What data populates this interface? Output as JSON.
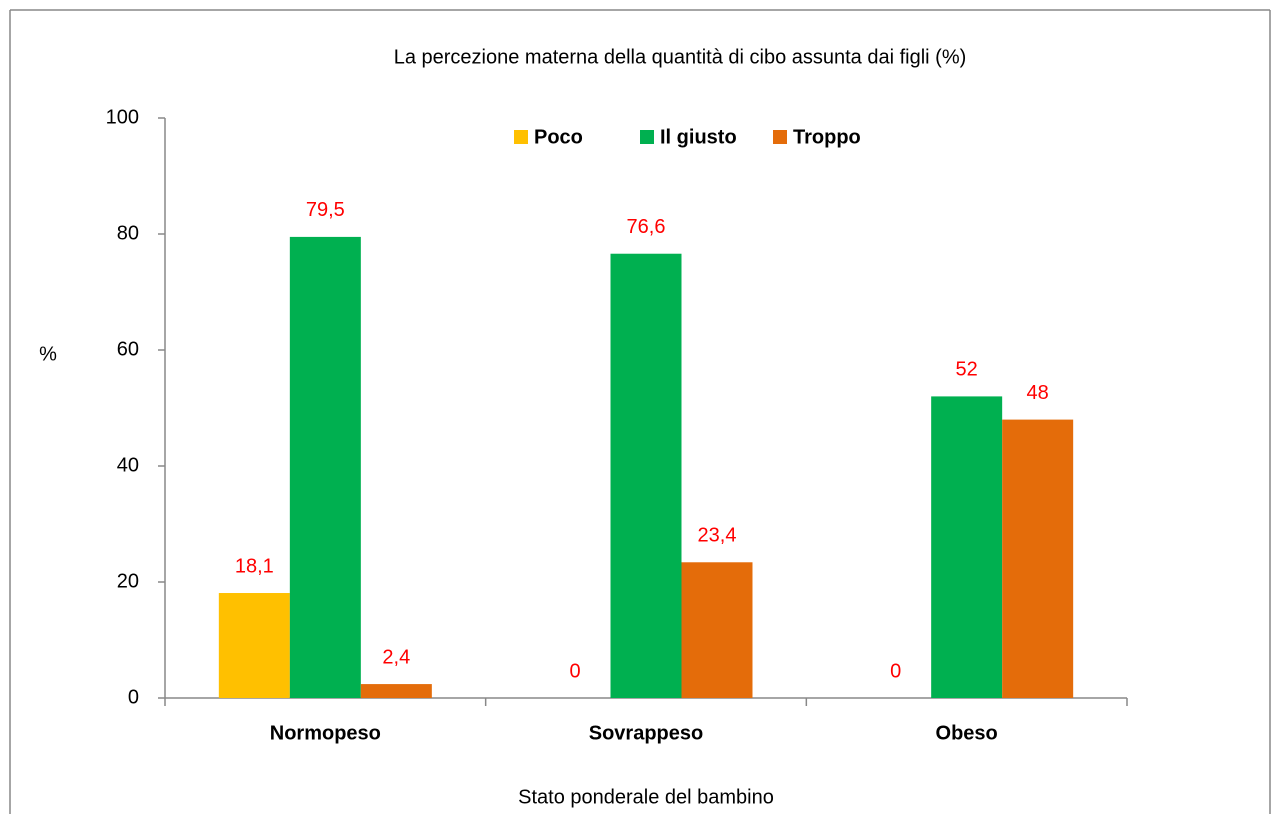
{
  "chart_data": {
    "type": "bar",
    "title": "La percezione materna della quantità di cibo assunta dai figli (%)",
    "x_label": "Stato ponderale  del bambino",
    "y_label": "%",
    "categories": [
      "Normopeso",
      "Sovrappeso",
      "Obeso"
    ],
    "series": [
      {
        "name": "Poco",
        "color": "#ffc000",
        "values": [
          18.1,
          0,
          0
        ],
        "value_labels": [
          "18,1",
          "0",
          "0"
        ]
      },
      {
        "name": "Il giusto",
        "color": "#00b050",
        "values": [
          79.5,
          76.6,
          52
        ],
        "value_labels": [
          "79,5",
          "76,6",
          "52"
        ]
      },
      {
        "name": "Troppo",
        "color": "#e46c0a",
        "values": [
          2.4,
          23.4,
          48
        ],
        "value_labels": [
          "2,4",
          "23,4",
          "48"
        ]
      }
    ],
    "ylim": [
      0,
      100
    ],
    "yticks": [
      0,
      20,
      40,
      60,
      80,
      100
    ],
    "grid": false,
    "legend": "top"
  }
}
